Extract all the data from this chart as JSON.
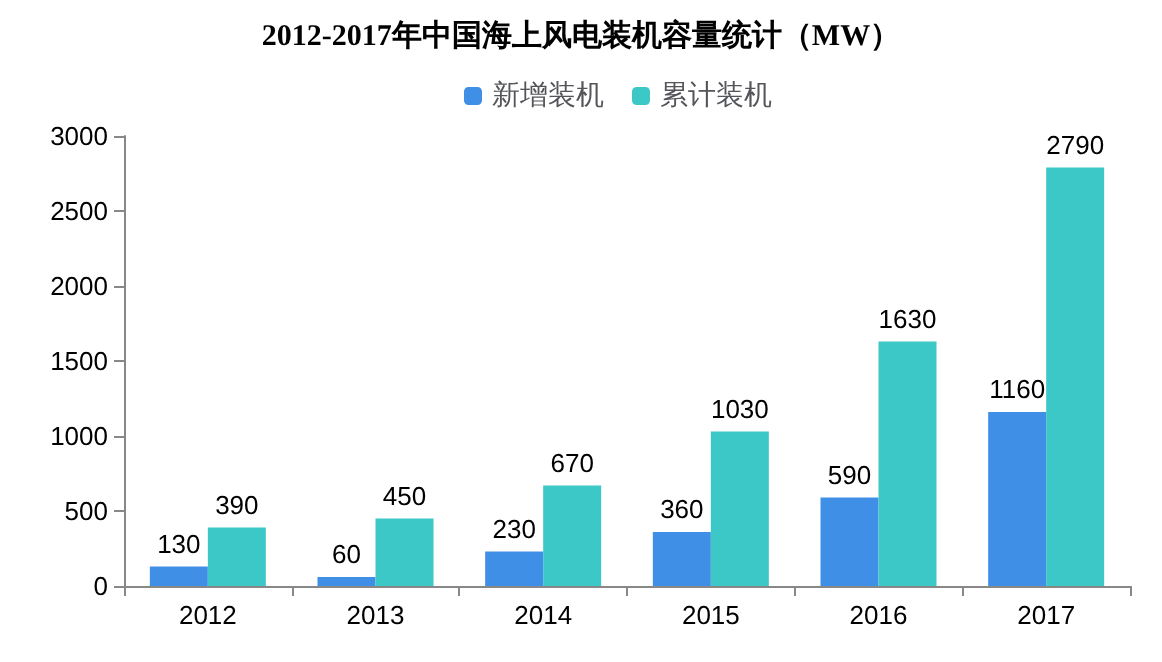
{
  "chart_data": {
    "type": "bar",
    "title": "2012-2017年中国海上风电装机容量统计（MW）",
    "categories": [
      "2012",
      "2013",
      "2014",
      "2015",
      "2016",
      "2017"
    ],
    "series": [
      {
        "name": "新增装机",
        "color": "#3f8fe6",
        "values": [
          130,
          60,
          230,
          360,
          590,
          1160
        ]
      },
      {
        "name": "累计装机",
        "color": "#3cc8c6",
        "values": [
          390,
          450,
          670,
          1030,
          1630,
          2790
        ]
      }
    ],
    "ylim": [
      0,
      3000
    ],
    "yticks": [
      0,
      500,
      1000,
      1500,
      2000,
      2500,
      3000
    ],
    "grid": false,
    "legend": "top",
    "data_labels": true
  }
}
